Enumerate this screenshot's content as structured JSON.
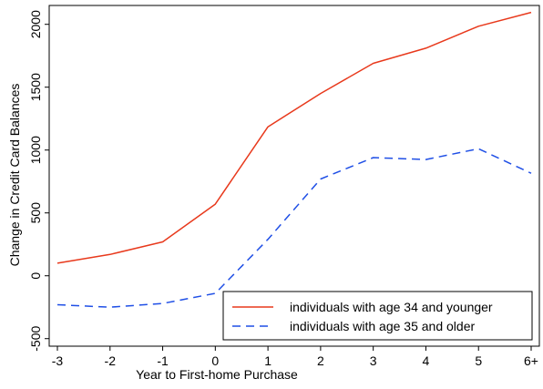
{
  "chart_data": {
    "type": "line",
    "categories": [
      "-3",
      "-2",
      "-1",
      "0",
      "1",
      "2",
      "3",
      "4",
      "5",
      "6+"
    ],
    "series": [
      {
        "name": "individuals with age 34 and younger",
        "color": "#e8391c",
        "dash": "solid",
        "values": [
          100,
          170,
          270,
          570,
          1185,
          1450,
          1690,
          1810,
          1985,
          2095
        ]
      },
      {
        "name": "individuals with age 35 and older",
        "color": "#1f4fe6",
        "dash": "dashed",
        "values": [
          -230,
          -250,
          -220,
          -140,
          290,
          770,
          940,
          925,
          1010,
          815
        ]
      }
    ],
    "xlabel": "Year to First-home Purchase",
    "ylabel": "Change in Credit Card Balances",
    "yticks": [
      -500,
      0,
      500,
      1000,
      1500,
      2000
    ],
    "ylim": [
      -560,
      2150
    ],
    "legend_position": "bottom-right",
    "grid": false
  }
}
